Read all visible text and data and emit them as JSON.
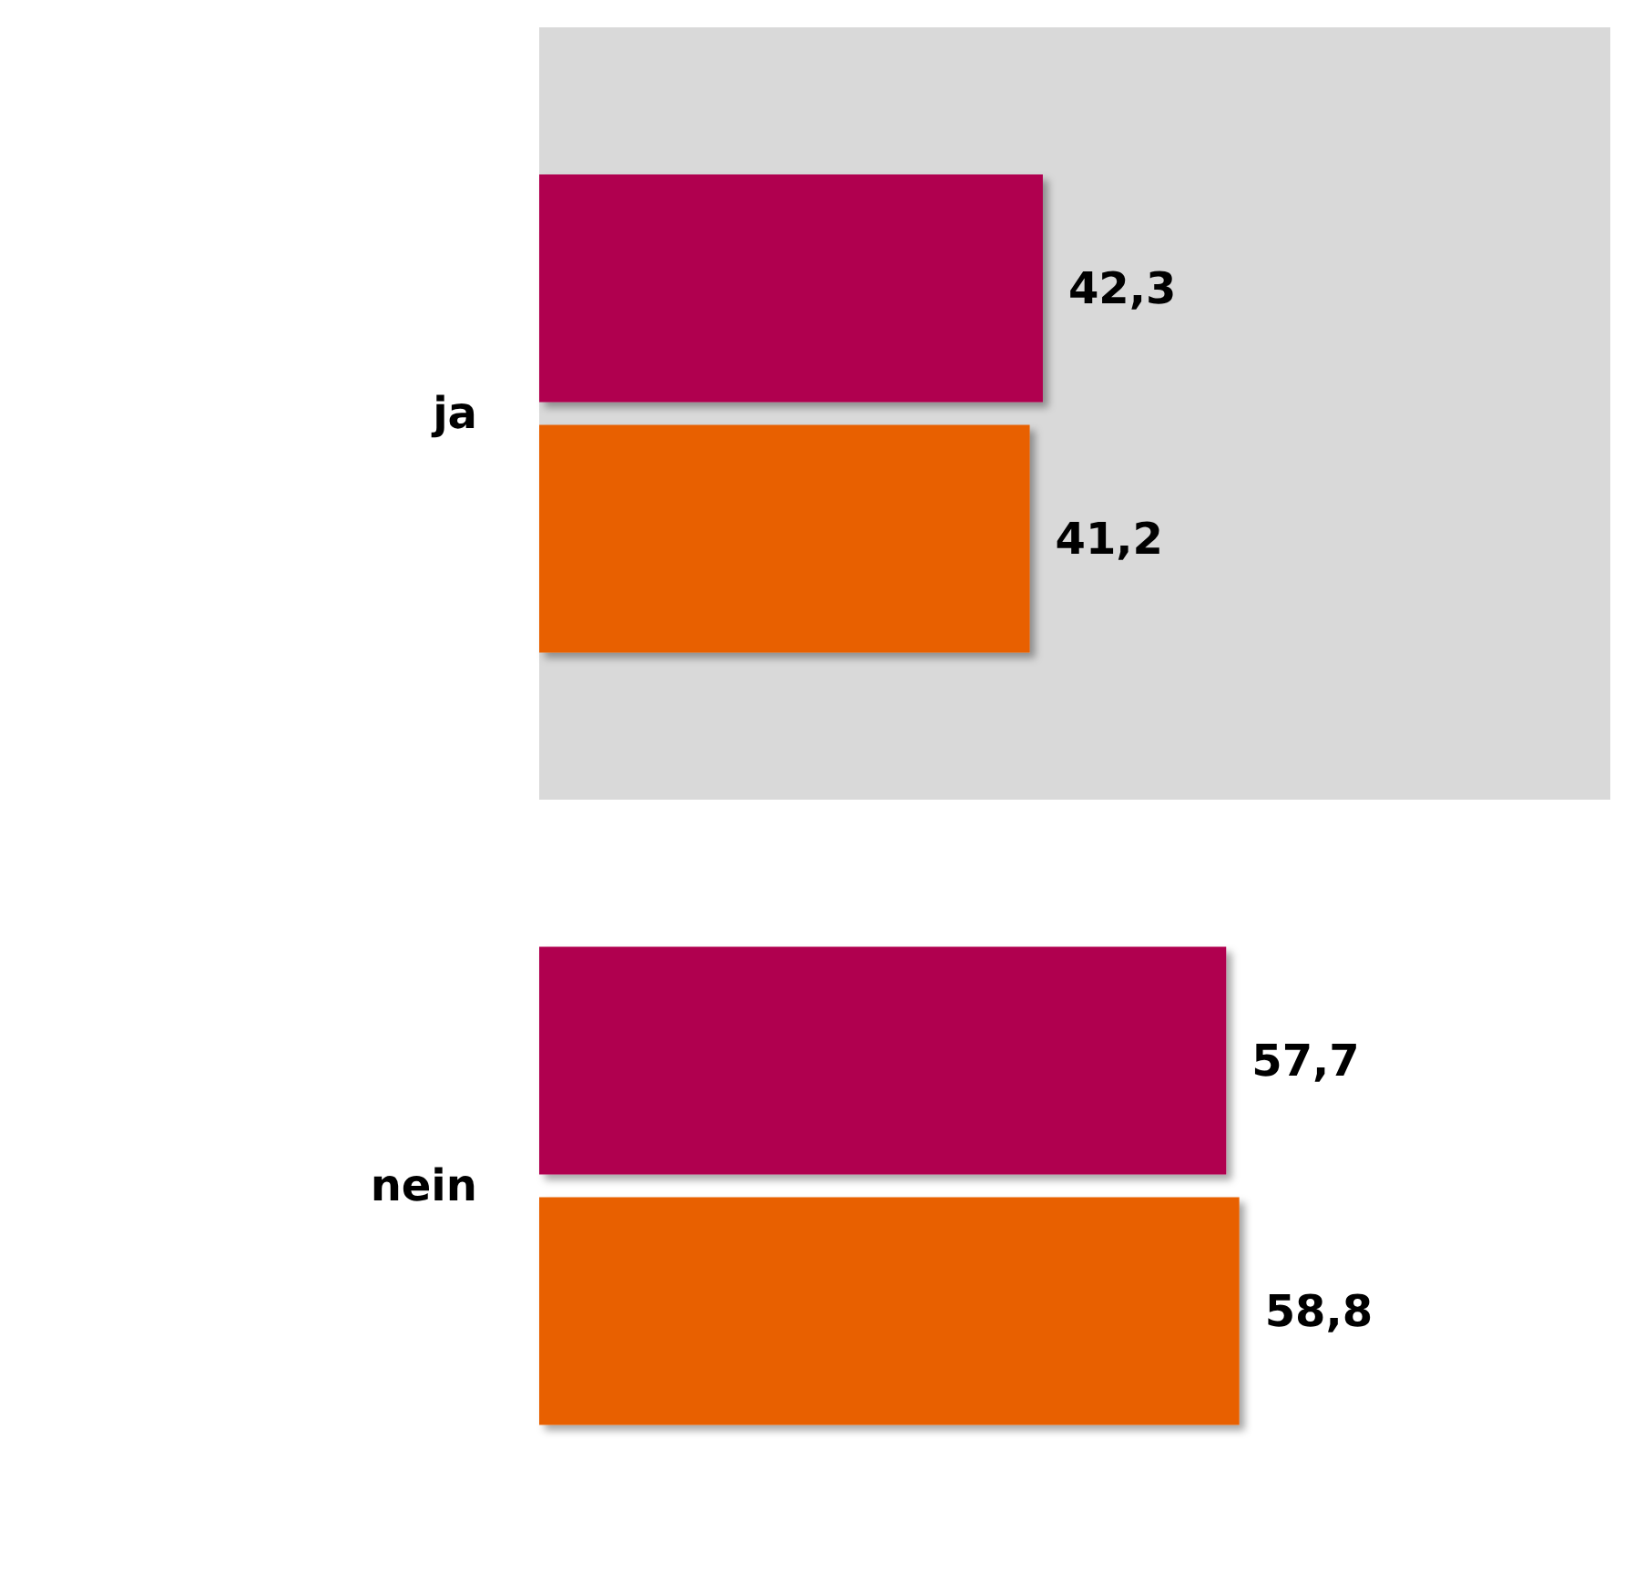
{
  "chart_data": {
    "type": "bar",
    "orientation": "horizontal",
    "categories": [
      "ja",
      "nein"
    ],
    "series": [
      {
        "color": "#b0004f",
        "values": [
          42.3,
          57.7
        ],
        "value_labels": [
          "42,3",
          "57,7"
        ]
      },
      {
        "color": "#e86000",
        "values": [
          41.2,
          58.8
        ],
        "value_labels": [
          "41,2",
          "58,8"
        ]
      }
    ],
    "tick_labels": "y",
    "grid": false,
    "bands": [
      {
        "axis": "y",
        "from": "ja",
        "to": "ja",
        "color": "#d9d9d9"
      }
    ]
  }
}
